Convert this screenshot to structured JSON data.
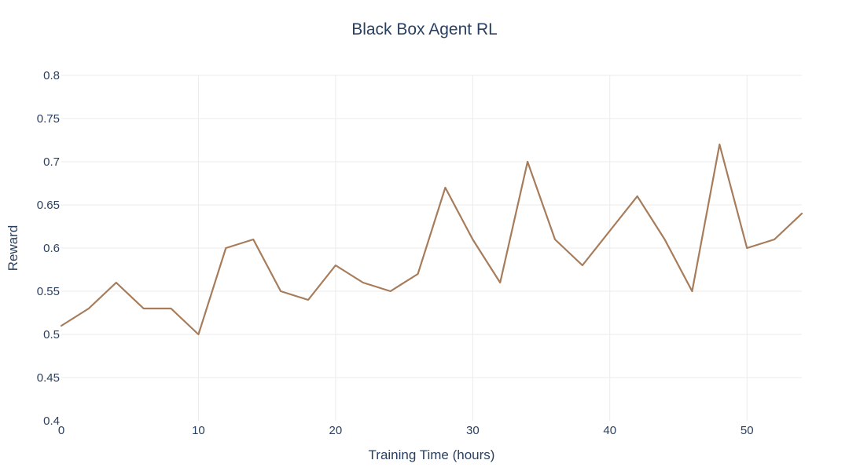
{
  "chart_data": {
    "type": "line",
    "title": "Black Box Agent RL",
    "xlabel": "Training Time (hours)",
    "ylabel": "Reward",
    "xlim": [
      0,
      54
    ],
    "ylim": [
      0.4,
      0.8
    ],
    "x_ticks": [
      0,
      10,
      20,
      30,
      40,
      50
    ],
    "x_tick_labels": [
      "0",
      "10",
      "20",
      "30",
      "40",
      "50"
    ],
    "y_ticks": [
      0.4,
      0.45,
      0.5,
      0.55,
      0.6,
      0.65,
      0.7,
      0.75,
      0.8
    ],
    "y_tick_labels": [
      "0.4",
      "0.45",
      "0.5",
      "0.55",
      "0.6",
      "0.65",
      "0.7",
      "0.75",
      "0.8"
    ],
    "grid": true,
    "legend": "none",
    "series": [
      {
        "color": "#a67c5b",
        "x": [
          0,
          2,
          4,
          6,
          8,
          10,
          12,
          14,
          16,
          18,
          20,
          22,
          24,
          26,
          28,
          30,
          32,
          34,
          36,
          38,
          40,
          42,
          44,
          46,
          48,
          50,
          52,
          54
        ],
        "y": [
          0.51,
          0.53,
          0.56,
          0.53,
          0.53,
          0.5,
          0.6,
          0.61,
          0.55,
          0.54,
          0.58,
          0.56,
          0.55,
          0.57,
          0.67,
          0.61,
          0.56,
          0.7,
          0.61,
          0.58,
          0.62,
          0.66,
          0.61,
          0.55,
          0.72,
          0.6,
          0.61,
          0.64
        ]
      }
    ]
  }
}
